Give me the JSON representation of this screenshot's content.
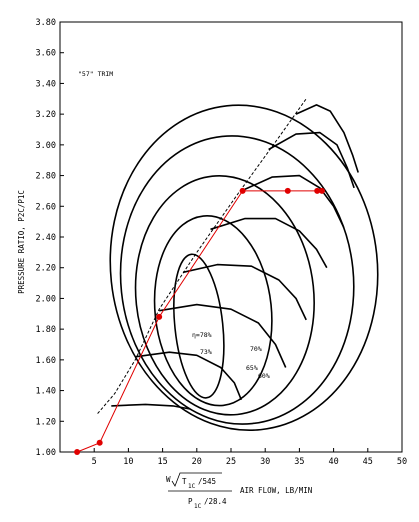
{
  "chart_data": {
    "type": "line",
    "title": "",
    "annotation": "\"57\" TRIM",
    "xlabel": {
      "formula_numerator": "W",
      "formula_root": "T",
      "formula_root_sub": "1C",
      "formula_root_tail": "/545",
      "formula_denominator": "P",
      "formula_denominator_sub": "1C",
      "formula_denominator_tail": "/28.4",
      "text": "AIR FLOW, LB/MIN"
    },
    "ylabel": "PRESSURE RATIO, P2C/P1C",
    "xlim": [
      0,
      50
    ],
    "ylim": [
      1.0,
      3.8
    ],
    "x_ticks": [
      "5",
      "10",
      "15",
      "20",
      "25",
      "30",
      "35",
      "40",
      "45",
      "50"
    ],
    "y_ticks": [
      "1.00",
      "1.20",
      "1.40",
      "1.60",
      "1.80",
      "2.00",
      "2.20",
      "2.40",
      "2.60",
      "2.80",
      "3.00",
      "3.20",
      "3.40",
      "3.60",
      "3.80"
    ],
    "grid": false,
    "efficiency_labels": [
      "η=78%",
      "73%",
      "70%",
      "65%",
      "60%"
    ],
    "series": [
      {
        "color": "#e00000",
        "marker": "circle",
        "points": [
          {
            "x": 2.5,
            "y": 1.0
          },
          {
            "x": 5.8,
            "y": 1.06
          },
          {
            "x": 14.5,
            "y": 1.88
          },
          {
            "x": 26.7,
            "y": 2.7
          },
          {
            "x": 33.3,
            "y": 2.7
          },
          {
            "x": 37.6,
            "y": 2.7
          },
          {
            "x": 38.3,
            "y": 2.7
          }
        ]
      }
    ],
    "surge_line": [
      [
        5.5,
        1.25
      ],
      [
        8.0,
        1.38
      ],
      [
        11.0,
        1.6
      ],
      [
        14.5,
        1.93
      ],
      [
        20.0,
        2.3
      ],
      [
        26.0,
        2.68
      ],
      [
        32.0,
        3.05
      ],
      [
        36.0,
        3.3
      ]
    ],
    "speed_lines": [
      [
        [
          7.5,
          1.3
        ],
        [
          12.5,
          1.31
        ],
        [
          16.5,
          1.3
        ],
        [
          19.0,
          1.28
        ]
      ],
      [
        [
          11.0,
          1.62
        ],
        [
          16.0,
          1.65
        ],
        [
          20.0,
          1.63
        ],
        [
          23.5,
          1.55
        ],
        [
          25.5,
          1.45
        ],
        [
          26.5,
          1.34
        ]
      ],
      [
        [
          14.5,
          1.92
        ],
        [
          20.0,
          1.96
        ],
        [
          25.0,
          1.93
        ],
        [
          29.0,
          1.84
        ],
        [
          31.5,
          1.7
        ],
        [
          33.0,
          1.55
        ]
      ],
      [
        [
          18.0,
          2.17
        ],
        [
          23.0,
          2.22
        ],
        [
          28.0,
          2.21
        ],
        [
          32.0,
          2.12
        ],
        [
          34.5,
          2.0
        ],
        [
          36.0,
          1.86
        ]
      ],
      [
        [
          22.0,
          2.45
        ],
        [
          27.0,
          2.52
        ],
        [
          31.5,
          2.52
        ],
        [
          35.0,
          2.44
        ],
        [
          37.5,
          2.32
        ],
        [
          39.0,
          2.2
        ]
      ],
      [
        [
          26.5,
          2.7
        ],
        [
          31.0,
          2.79
        ],
        [
          35.0,
          2.8
        ],
        [
          38.0,
          2.72
        ],
        [
          40.0,
          2.6
        ],
        [
          41.5,
          2.46
        ]
      ],
      [
        [
          30.5,
          2.97
        ],
        [
          34.5,
          3.07
        ],
        [
          38.0,
          3.08
        ],
        [
          40.5,
          3.0
        ],
        [
          42.0,
          2.85
        ],
        [
          43.0,
          2.72
        ]
      ],
      [
        [
          34.5,
          3.2
        ],
        [
          37.5,
          3.26
        ],
        [
          39.5,
          3.22
        ],
        [
          41.5,
          3.08
        ],
        [
          42.8,
          2.93
        ],
        [
          43.6,
          2.82
        ]
      ]
    ],
    "efficiency_islands": [
      {
        "cx": 20.3,
        "cy": 1.82,
        "rx": 3.5,
        "ry": 0.47,
        "rot": -6
      },
      {
        "cx": 22.4,
        "cy": 1.92,
        "rx": 8.5,
        "ry": 0.62,
        "rot": -6
      },
      {
        "cx": 24.1,
        "cy": 2.02,
        "rx": 13.0,
        "ry": 0.78,
        "rot": -6
      },
      {
        "cx": 25.9,
        "cy": 2.12,
        "rx": 17.0,
        "ry": 0.94,
        "rot": -6
      },
      {
        "cx": 26.9,
        "cy": 2.2,
        "rx": 19.5,
        "ry": 1.06,
        "rot": -6
      }
    ]
  }
}
